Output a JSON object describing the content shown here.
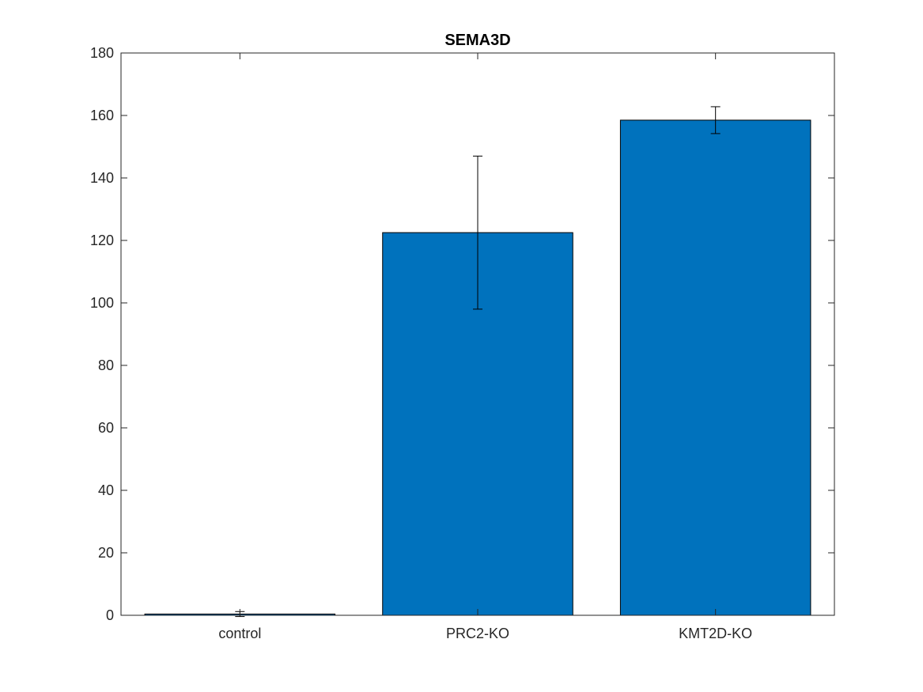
{
  "chart_data": {
    "type": "bar",
    "title": "SEMA3D",
    "xlabel": "",
    "ylabel": "",
    "categories": [
      "control",
      "PRC2-KO",
      "KMT2D-KO"
    ],
    "values": [
      0.4,
      122.5,
      158.5
    ],
    "error": [
      0.8,
      24.5,
      4.3
    ],
    "ylim": [
      0,
      180
    ],
    "yticks": [
      0,
      20,
      40,
      60,
      80,
      100,
      120,
      140,
      160,
      180
    ],
    "bar_color": "#0072BD",
    "edge_color": "#000000",
    "grid": false,
    "legend": "none"
  }
}
